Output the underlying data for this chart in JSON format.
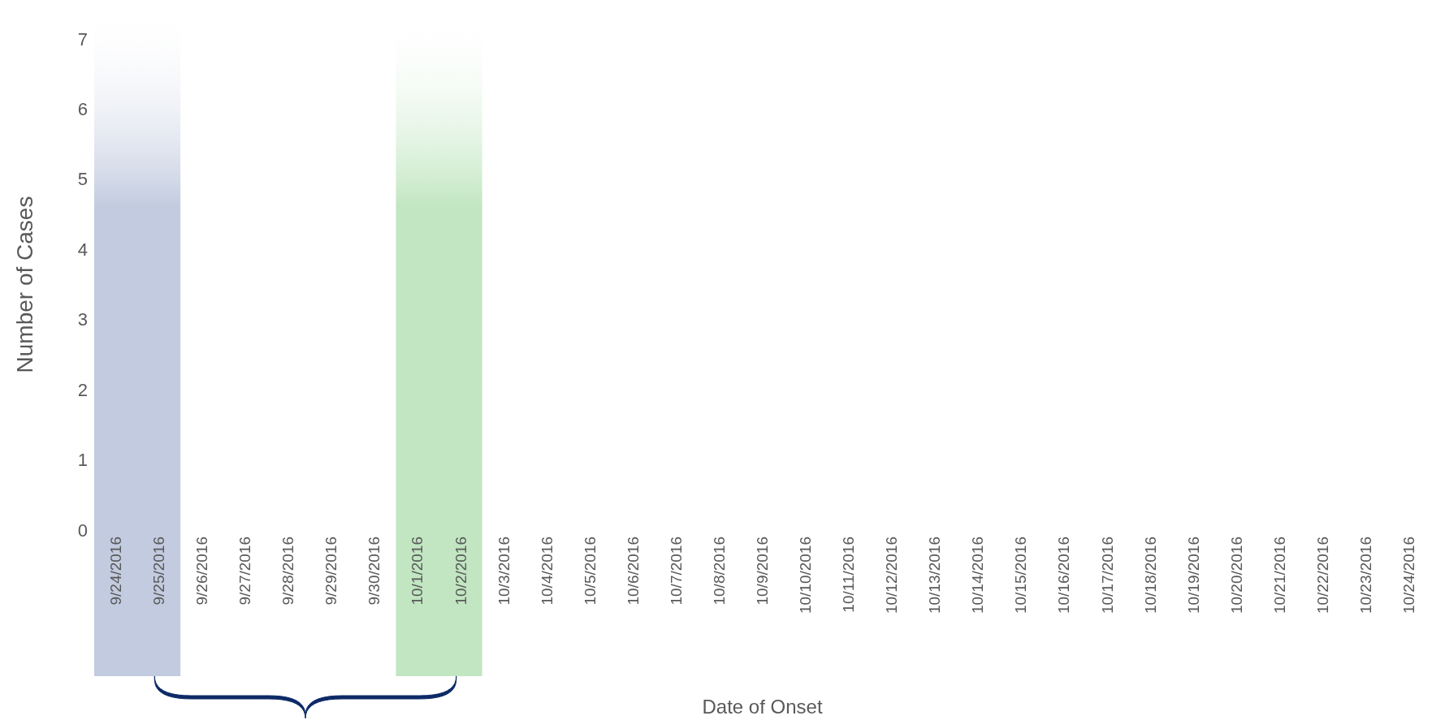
{
  "chart_data": {
    "type": "bar",
    "xlabel": "Date of Onset",
    "ylabel": "Number of Cases",
    "categories": [
      "9/24/2016",
      "9/25/2016",
      "9/26/2016",
      "9/27/2016",
      "9/28/2016",
      "9/29/2016",
      "9/30/2016",
      "10/1/2016",
      "10/2/2016",
      "10/3/2016",
      "10/4/2016",
      "10/5/2016",
      "10/6/2016",
      "10/7/2016",
      "10/8/2016",
      "10/9/2016",
      "10/10/2016",
      "10/11/2016",
      "10/12/2016",
      "10/13/2016",
      "10/14/2016",
      "10/15/2016",
      "10/16/2016",
      "10/17/2016",
      "10/18/2016",
      "10/19/2016",
      "10/20/2016",
      "10/21/2016",
      "10/22/2016",
      "10/23/2016",
      "10/24/2016"
    ],
    "values": [
      0,
      0,
      0,
      0,
      0,
      0,
      0,
      0,
      0,
      0,
      0,
      0,
      0,
      0,
      0,
      0,
      0,
      0,
      0,
      0,
      0,
      0,
      0,
      0,
      0,
      0,
      0,
      0,
      0,
      0,
      0
    ],
    "ylim": [
      0,
      7
    ],
    "yticks": [
      0,
      1,
      2,
      3,
      4,
      5,
      6,
      7
    ],
    "grid": false,
    "bands": [
      {
        "axis": "x",
        "from": "9/24/2016",
        "to": "9/25/2016",
        "color": "#c2cbdf"
      },
      {
        "axis": "x",
        "from": "10/1/2016",
        "to": "10/2/2016",
        "color": "#c1e6c1"
      }
    ]
  }
}
